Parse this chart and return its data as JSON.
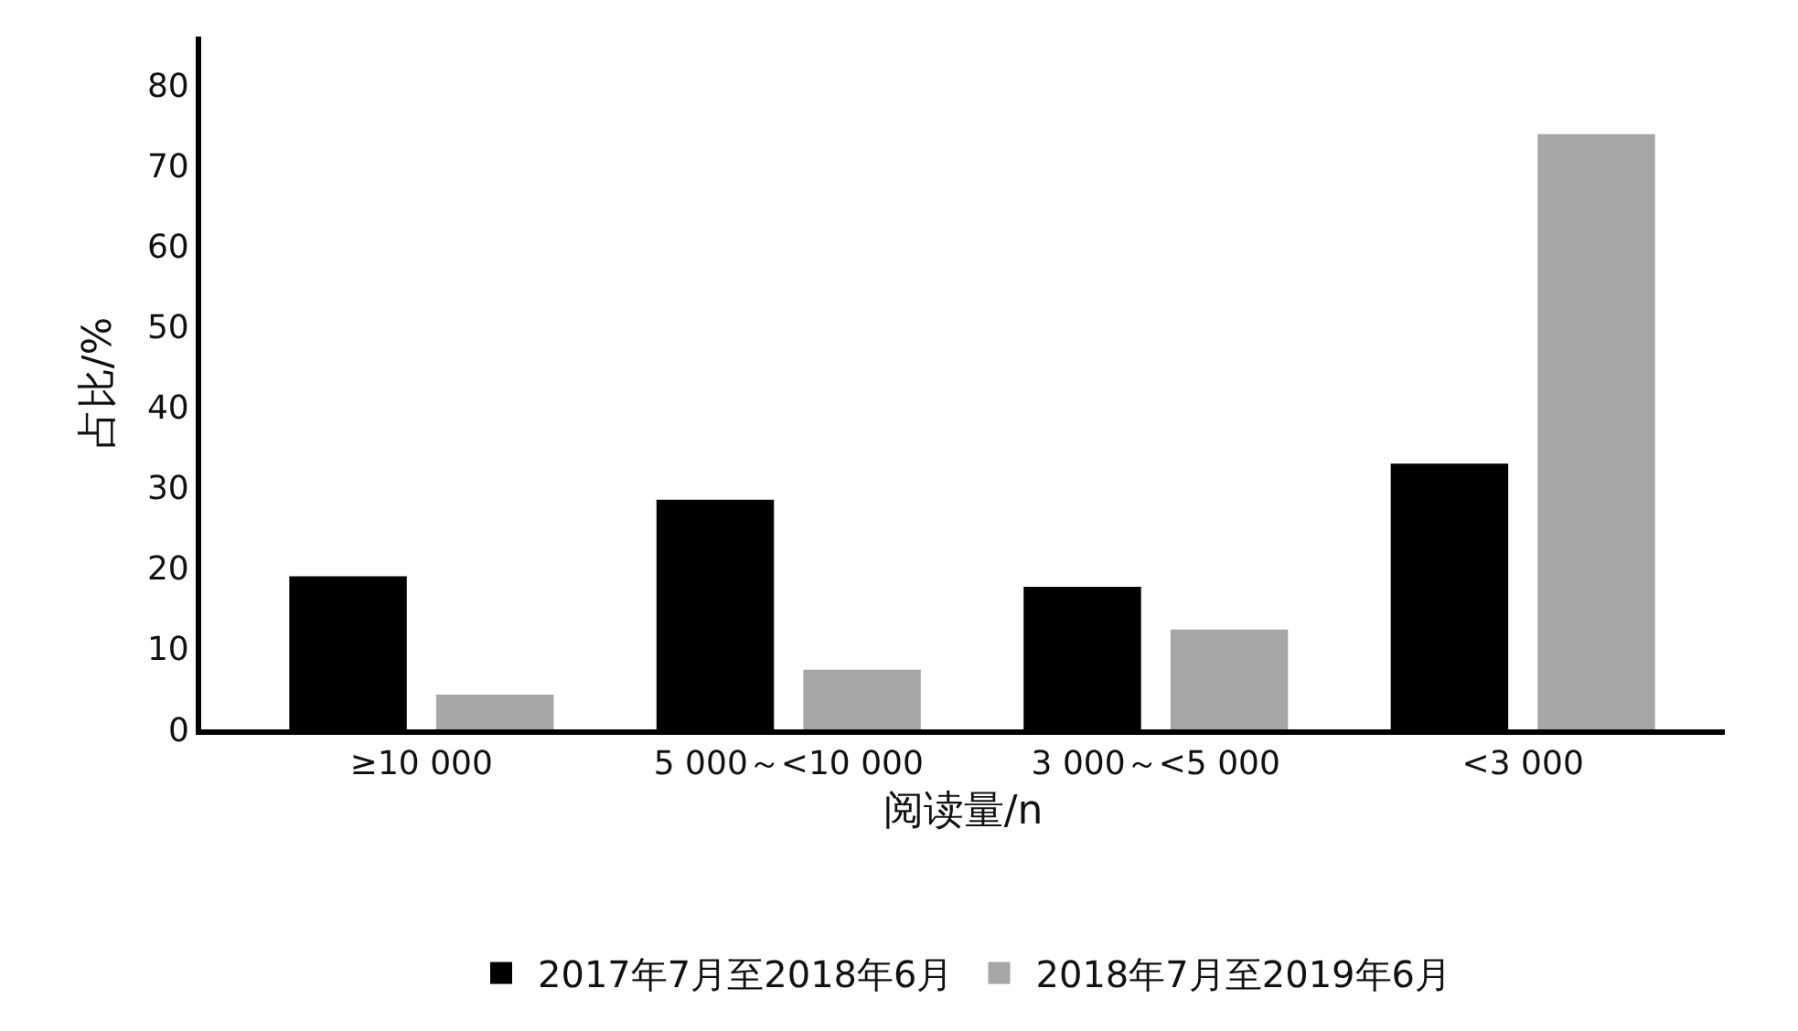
{
  "chart_data": {
    "type": "bar",
    "xlabel": "阅读量/n",
    "ylabel": "占比/%",
    "categories": [
      "≥10 000",
      "5 000～<10 000",
      "3 000～<5 000",
      "<3 000"
    ],
    "series": [
      {
        "name": "2017年7月至2018年6月",
        "color": "#000000",
        "values": [
          19.0,
          28.5,
          17.7,
          33.0
        ]
      },
      {
        "name": "2018年7月至2019年6月",
        "color": "#a6a6a6",
        "values": [
          4.3,
          7.4,
          12.4,
          73.9
        ]
      }
    ],
    "ylim": [
      0,
      86
    ],
    "yticks": [
      0,
      10,
      20,
      30,
      40,
      50,
      60,
      70,
      80
    ],
    "legend": "bottom"
  }
}
